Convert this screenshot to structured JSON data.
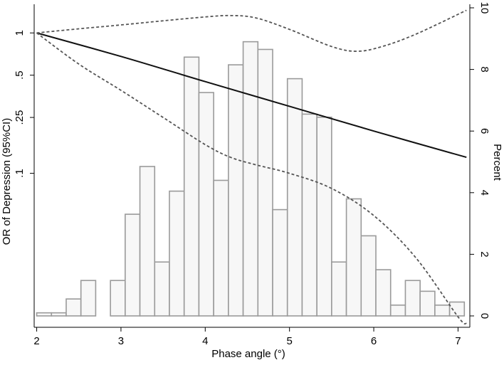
{
  "chart_data": {
    "type": "bar",
    "xlabel": "Phase angle (°)",
    "ylabel_left": "OR of Depression (95%CI)",
    "ylabel_right": "Percent",
    "x_ticks": [
      2,
      3,
      4,
      5,
      6,
      7
    ],
    "y_left_ticks": [
      {
        "label": ".1",
        "value": 0.1
      },
      {
        "label": ".25",
        "value": 0.25
      },
      {
        "label": ".5",
        "value": 0.5
      },
      {
        "label": "1",
        "value": 1
      }
    ],
    "y_left_scale": "log",
    "y_left_range": [
      0.008,
      1.6
    ],
    "y_right_ticks": [
      0,
      2,
      4,
      6,
      8,
      10
    ],
    "y_right_range": [
      0,
      10
    ],
    "x_range": [
      1.97,
      7.14
    ],
    "histogram": {
      "bin_width": 0.175,
      "bins": [
        {
          "start": 2.0,
          "percent": 0.1
        },
        {
          "start": 2.175,
          "percent": 0.1
        },
        {
          "start": 2.35,
          "percent": 0.55
        },
        {
          "start": 2.525,
          "percent": 1.15
        },
        {
          "start": 2.875,
          "percent": 1.15
        },
        {
          "start": 3.05,
          "percent": 3.3
        },
        {
          "start": 3.225,
          "percent": 4.85
        },
        {
          "start": 3.4,
          "percent": 1.75
        },
        {
          "start": 3.575,
          "percent": 4.05
        },
        {
          "start": 3.75,
          "percent": 8.4
        },
        {
          "start": 3.925,
          "percent": 7.25
        },
        {
          "start": 4.1,
          "percent": 4.4
        },
        {
          "start": 4.275,
          "percent": 8.15
        },
        {
          "start": 4.45,
          "percent": 8.9
        },
        {
          "start": 4.625,
          "percent": 8.65
        },
        {
          "start": 4.8,
          "percent": 3.45
        },
        {
          "start": 4.975,
          "percent": 7.7
        },
        {
          "start": 5.15,
          "percent": 6.55
        },
        {
          "start": 5.325,
          "percent": 6.45
        },
        {
          "start": 5.5,
          "percent": 1.75
        },
        {
          "start": 5.675,
          "percent": 3.8
        },
        {
          "start": 5.85,
          "percent": 2.6
        },
        {
          "start": 6.025,
          "percent": 1.5
        },
        {
          "start": 6.2,
          "percent": 0.35
        },
        {
          "start": 6.375,
          "percent": 1.15
        },
        {
          "start": 6.55,
          "percent": 0.8
        },
        {
          "start": 6.725,
          "percent": 0.35
        },
        {
          "start": 6.9,
          "percent": 0.45
        }
      ]
    },
    "series": [
      {
        "role": "estimate",
        "style": "solid",
        "x": [
          2.0,
          3.0,
          4.0,
          5.0,
          6.0,
          7.1
        ],
        "y": [
          1.0,
          0.68,
          0.45,
          0.3,
          0.2,
          0.13
        ]
      },
      {
        "role": "upper_ci",
        "style": "dashed",
        "x": [
          2.0,
          2.5,
          3.0,
          3.5,
          4.0,
          4.3,
          4.6,
          5.0,
          5.5,
          5.8,
          6.1,
          6.5,
          7.1
        ],
        "y": [
          1.0,
          1.07,
          1.14,
          1.22,
          1.3,
          1.33,
          1.28,
          1.06,
          0.8,
          0.74,
          0.8,
          0.98,
          1.45
        ]
      },
      {
        "role": "lower_ci",
        "style": "dashed",
        "x": [
          2.0,
          2.5,
          3.0,
          3.5,
          4.0,
          4.3,
          4.6,
          5.0,
          5.5,
          6.0,
          6.5,
          7.0,
          7.1
        ],
        "y": [
          1.0,
          0.6,
          0.39,
          0.25,
          0.16,
          0.13,
          0.115,
          0.1,
          0.078,
          0.05,
          0.025,
          0.0095,
          0.0085
        ]
      }
    ],
    "grid": false,
    "legend": "none"
  }
}
